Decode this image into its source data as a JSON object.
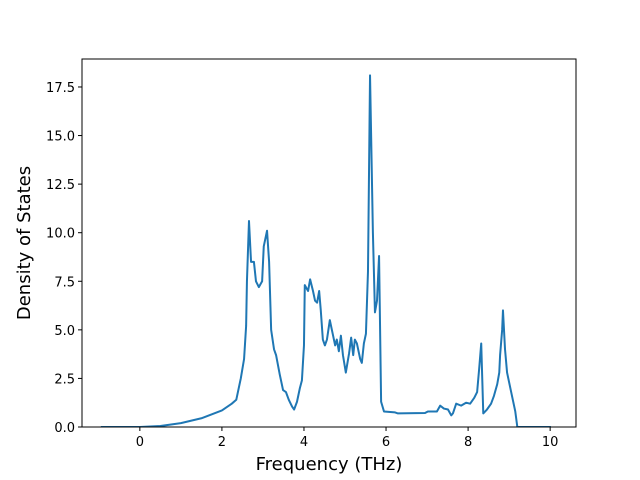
{
  "chart_data": {
    "type": "line",
    "xlabel": "Frequency (THz)",
    "ylabel": "Density of States",
    "x": [
      -0.95,
      0,
      0.5,
      1.0,
      1.5,
      2.0,
      2.24,
      2.35,
      2.46,
      2.54,
      2.59,
      2.61,
      2.66,
      2.71,
      2.78,
      2.83,
      2.9,
      2.98,
      3.02,
      3.1,
      3.15,
      3.2,
      3.27,
      3.32,
      3.41,
      3.49,
      3.56,
      3.63,
      3.71,
      3.76,
      3.83,
      3.9,
      3.95,
      4.0,
      4.02,
      4.1,
      4.15,
      4.22,
      4.27,
      4.32,
      4.37,
      4.41,
      4.46,
      4.51,
      4.56,
      4.63,
      4.71,
      4.76,
      4.8,
      4.85,
      4.9,
      4.95,
      5.02,
      5.1,
      5.15,
      5.2,
      5.24,
      5.29,
      5.37,
      5.41,
      5.46,
      5.51,
      5.56,
      5.61,
      5.68,
      5.73,
      5.78,
      5.83,
      5.88,
      5.95,
      6.22,
      6.29,
      6.95,
      7.02,
      7.24,
      7.32,
      7.41,
      7.51,
      7.59,
      7.63,
      7.71,
      7.83,
      7.95,
      8.05,
      8.15,
      8.22,
      8.27,
      8.32,
      8.37,
      8.46,
      8.56,
      8.63,
      8.71,
      8.76,
      8.78,
      8.83,
      8.85,
      8.9,
      8.95,
      9.05,
      9.15,
      9.2,
      10.02
    ],
    "values": [
      0,
      0,
      0.05,
      0.2,
      0.45,
      0.85,
      1.2,
      1.4,
      2.5,
      3.5,
      5.2,
      7.5,
      10.6,
      8.5,
      8.5,
      7.5,
      7.2,
      7.5,
      9.3,
      10.1,
      8.5,
      5.0,
      4.0,
      3.7,
      2.7,
      1.9,
      1.8,
      1.4,
      1.05,
      0.9,
      1.3,
      2.0,
      2.4,
      4.2,
      7.3,
      7.0,
      7.6,
      7.0,
      6.5,
      6.4,
      7.0,
      6.0,
      4.5,
      4.2,
      4.5,
      5.5,
      4.7,
      4.2,
      4.5,
      3.9,
      4.7,
      3.7,
      2.8,
      3.8,
      4.6,
      3.7,
      4.5,
      4.3,
      3.5,
      3.3,
      4.3,
      4.8,
      8.0,
      18.1,
      10.0,
      5.9,
      6.5,
      8.8,
      1.3,
      0.8,
      0.75,
      0.7,
      0.72,
      0.8,
      0.8,
      1.1,
      0.95,
      0.9,
      0.6,
      0.7,
      1.2,
      1.1,
      1.25,
      1.2,
      1.5,
      1.8,
      3.0,
      4.3,
      0.7,
      0.9,
      1.2,
      1.6,
      2.2,
      2.8,
      3.7,
      5.0,
      6.0,
      4.0,
      2.8,
      1.8,
      0.8,
      0,
      0
    ],
    "color": "#1f77b4",
    "xlim": [
      -1.41,
      10.63
    ],
    "xticks": [
      0,
      2,
      4,
      6,
      8,
      10
    ],
    "ylim": [
      0,
      18.94
    ],
    "yticks": [
      {
        "value": 0,
        "label": "0.0"
      },
      2.5,
      {
        "value": 5,
        "label": "5.0"
      },
      7.5,
      {
        "value": 10,
        "label": "10.0"
      },
      12.5,
      {
        "value": 15,
        "label": "15.0"
      },
      17.5
    ]
  }
}
